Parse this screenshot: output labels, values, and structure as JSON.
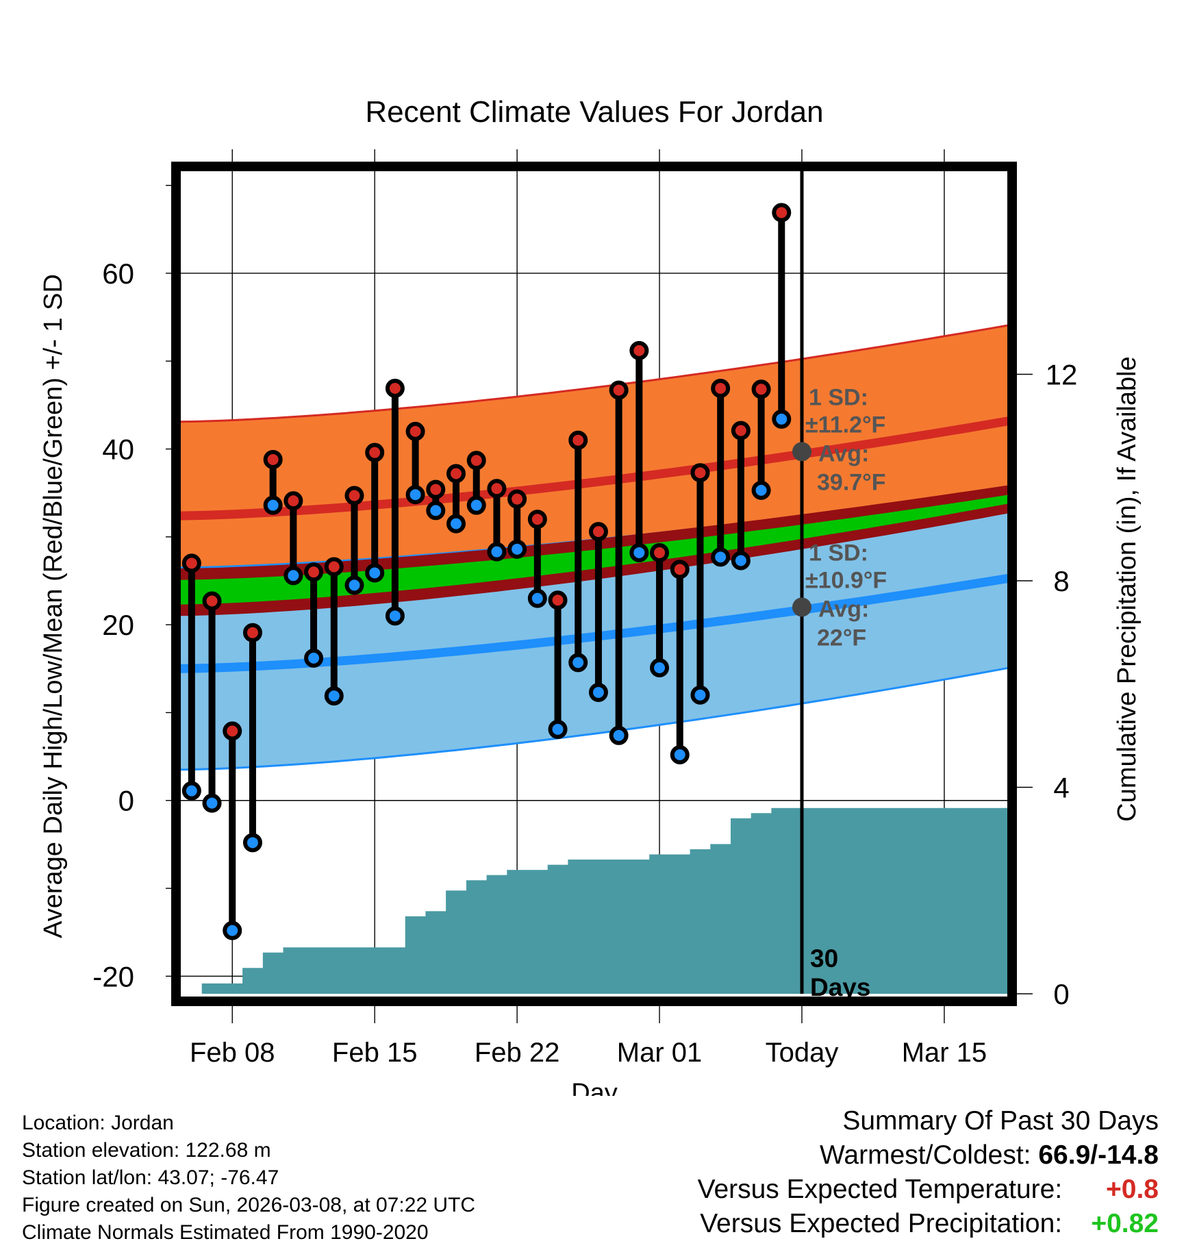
{
  "chart_data": {
    "type": "line",
    "title": "Recent Climate Values For Jordan",
    "xlabel": "Day",
    "ylabel": "Average Daily High/Low/Mean (Red/Blue/Green) +/- 1 SD",
    "y2label": "Cumulative Precipitation (in), If Available",
    "x_tick_labels": [
      "Feb 08",
      "Feb 15",
      "Feb 22",
      "Mar 01",
      "Today",
      "Mar 15"
    ],
    "x_tick_days": [
      2,
      9,
      16,
      23,
      30,
      37
    ],
    "xlim": [
      -0.6,
      40.2
    ],
    "ylim": [
      -22,
      72
    ],
    "y_ticks": [
      -20,
      0,
      20,
      40,
      60
    ],
    "y2lim": [
      0,
      16
    ],
    "y2_ticks": [
      0,
      4,
      8,
      12
    ],
    "today_day": 30,
    "window_label": [
      "30",
      "Days"
    ],
    "normal_high": {
      "start": 32.4,
      "end": 43.2
    },
    "normal_low": {
      "start": 15.0,
      "end": 25.3
    },
    "normal_mean": {
      "start": 23.7,
      "end": 34.3
    },
    "sd_high": {
      "start": 10.7,
      "end": 10.9
    },
    "sd_low": {
      "start": 11.5,
      "end": 10.2
    },
    "sd_mean": {
      "start": 1.4,
      "end": 0.5
    },
    "today_high": {
      "label": [
        "1 SD:",
        "±11.2°F",
        "Avg:",
        "39.7°F"
      ],
      "value": 39.7
    },
    "today_low": {
      "label": [
        "1 SD:",
        "±10.9°F",
        "Avg:",
        "22°F"
      ],
      "value": 22.0
    },
    "observed": {
      "days": [
        0,
        1,
        2,
        3,
        4,
        5,
        6,
        7,
        8,
        9,
        10,
        11,
        12,
        13,
        14,
        15,
        16,
        17,
        18,
        19,
        20,
        21,
        22,
        23,
        24,
        25,
        26,
        27,
        28,
        29
      ],
      "highs": [
        27,
        22.7,
        7.9,
        19.1,
        38.8,
        34.1,
        26.0,
        26.6,
        34.7,
        39.6,
        46.9,
        42.0,
        35.4,
        37.2,
        38.7,
        35.5,
        34.3,
        32.0,
        22.8,
        41.0,
        30.6,
        46.7,
        51.2,
        28.2,
        26.3,
        37.3,
        46.9,
        42.1,
        46.8,
        66.9
      ],
      "lows": [
        1.1,
        -0.3,
        -14.8,
        -4.8,
        33.6,
        25.6,
        16.2,
        11.9,
        24.5,
        25.9,
        21.0,
        34.8,
        33.0,
        31.5,
        33.6,
        28.3,
        28.6,
        23.0,
        8.1,
        15.7,
        12.3,
        7.4,
        28.2,
        15.1,
        5.2,
        12.0,
        27.7,
        27.3,
        35.3,
        43.4
      ]
    },
    "cumulative_precip": {
      "days": [
        0,
        1,
        2,
        3,
        4,
        5,
        6,
        7,
        8,
        9,
        10,
        11,
        12,
        13,
        14,
        15,
        16,
        17,
        18,
        19,
        20,
        21,
        22,
        23,
        24,
        25,
        26,
        27,
        28,
        29,
        30,
        40.2
      ],
      "values": [
        0.0,
        0.2,
        0.2,
        0.5,
        0.8,
        0.9,
        0.9,
        0.9,
        0.9,
        0.9,
        0.9,
        1.5,
        1.6,
        2.0,
        2.2,
        2.3,
        2.4,
        2.4,
        2.5,
        2.6,
        2.6,
        2.6,
        2.6,
        2.7,
        2.7,
        2.8,
        2.9,
        3.4,
        3.5,
        3.6,
        3.6,
        3.6
      ]
    },
    "colors": {
      "high": "#d42a23",
      "high_band": "#f57a30",
      "low": "#1e8ffb",
      "low_band": "#80c1e8",
      "mean": "#00c400",
      "mean_band": "#930f13",
      "precip": "#4a9aa3",
      "sd_text": "#555555"
    }
  },
  "info": {
    "location": "Location: Jordan",
    "elevation": "Station elevation: 122.68 m",
    "latlon": "Station lat/lon: 43.07; -76.47",
    "created": "Figure created on Sun, 2026-03-08, at 07:22 UTC",
    "normals": "Climate Normals Estimated From 1990-2020"
  },
  "summary": {
    "title": "Summary Of Past 30 Days",
    "warm_cold_label": "Warmest/Coldest:",
    "warm_cold_value": "66.9/-14.8",
    "temp_label": "Versus Expected Temperature:",
    "temp_value": "+0.8",
    "temp_color": "#d42a23",
    "precip_label": "Versus Expected Precipitation:",
    "precip_value": "+0.82",
    "precip_color": "#1ec41e"
  }
}
